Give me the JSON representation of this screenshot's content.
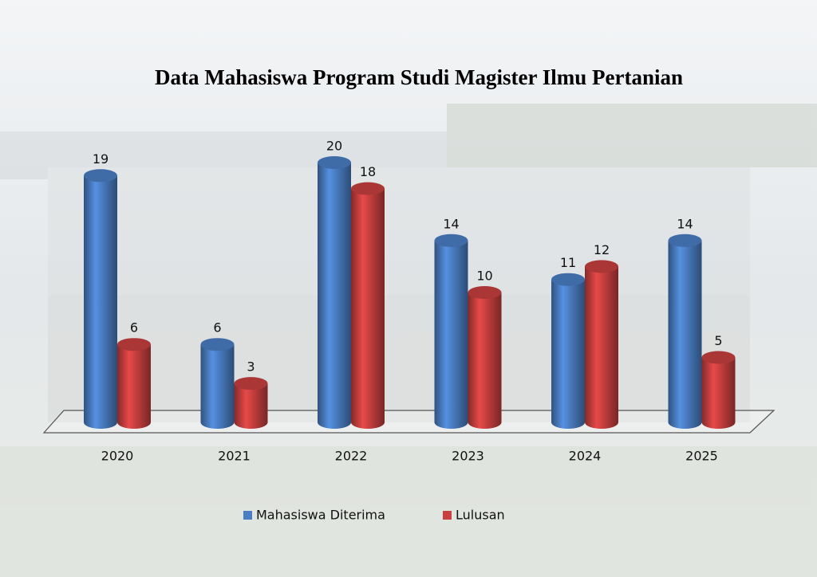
{
  "chart_data": {
    "type": "bar",
    "title": "Data Mahasiswa Program Studi Magister Ilmu Pertanian",
    "categories": [
      "2020",
      "2021",
      "2022",
      "2023",
      "2024",
      "2025"
    ],
    "series": [
      {
        "name": "Mahasiswa Diterima",
        "color": "#4a7ec4",
        "values": [
          19,
          6,
          20,
          14,
          11,
          14
        ]
      },
      {
        "name": "Lulusan",
        "color": "#c9403f",
        "values": [
          6,
          3,
          18,
          10,
          12,
          5
        ]
      }
    ],
    "legend": "bottom"
  }
}
